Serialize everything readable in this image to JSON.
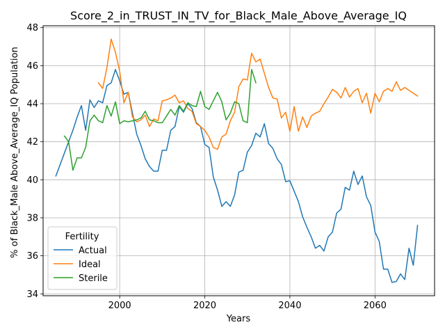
{
  "chart_data": {
    "type": "line",
    "title": "Score_2_in_TRUST_IN_TV_for_Black_Male_Above_Average_IQ",
    "xlabel": "Years",
    "ylabel": "% of Black_Male Above_Average_IQ Population",
    "xlim": [
      1982,
      2074
    ],
    "ylim": [
      33.9,
      48.1
    ],
    "xticks": [
      2000,
      2020,
      2040,
      2060
    ],
    "yticks": [
      34,
      36,
      38,
      40,
      42,
      44,
      46,
      48
    ],
    "grid": true,
    "legend": {
      "title": "Fertility",
      "placement": "lower-left"
    },
    "series": [
      {
        "name": "Actual",
        "color": "#1f77b4",
        "x": [
          1985,
          1986,
          1987,
          1988,
          1989,
          1990,
          1991,
          1992,
          1993,
          1994,
          1995,
          1996,
          1997,
          1998,
          1999,
          2000,
          2001,
          2002,
          2003,
          2004,
          2005,
          2006,
          2007,
          2008,
          2009,
          2010,
          2011,
          2012,
          2013,
          2014,
          2015,
          2016,
          2017,
          2018,
          2019,
          2020,
          2021,
          2022,
          2023,
          2024,
          2025,
          2026,
          2027,
          2028,
          2029,
          2030,
          2031,
          2032,
          2033,
          2034,
          2035,
          2036,
          2037,
          2038,
          2039,
          2040,
          2041,
          2042,
          2043,
          2044,
          2045,
          2046,
          2047,
          2048,
          2049,
          2050,
          2051,
          2052,
          2053,
          2054,
          2055,
          2056,
          2057,
          2058,
          2059,
          2060,
          2061,
          2062,
          2063,
          2064,
          2065,
          2066,
          2067,
          2068,
          2069,
          2070
        ],
        "values": [
          40.2,
          40.8,
          41.4,
          42.0,
          42.6,
          43.3,
          43.9,
          42.6,
          44.2,
          43.8,
          44.15,
          44.05,
          44.95,
          45.1,
          45.8,
          45.2,
          44.5,
          44.6,
          43.5,
          42.4,
          41.8,
          41.1,
          40.7,
          40.45,
          40.45,
          41.55,
          41.55,
          42.6,
          42.8,
          43.85,
          43.55,
          44.0,
          43.75,
          43.0,
          42.8,
          41.85,
          41.7,
          40.15,
          39.45,
          38.6,
          38.85,
          38.6,
          39.2,
          40.4,
          40.5,
          41.45,
          41.8,
          42.45,
          42.25,
          42.95,
          41.9,
          41.65,
          41.1,
          40.8,
          39.9,
          39.95,
          39.4,
          38.85,
          38.05,
          37.5,
          37.0,
          36.4,
          36.55,
          36.25,
          37.0,
          37.25,
          38.25,
          38.45,
          39.6,
          39.45,
          40.45,
          39.75,
          40.2,
          39.1,
          38.65,
          37.25,
          36.75,
          35.3,
          35.3,
          34.6,
          34.65,
          35.05,
          34.75,
          36.4,
          35.5,
          37.6
        ]
      },
      {
        "name": "Ideal",
        "color": "#ff7f0e",
        "x": [
          1995,
          1996,
          1997,
          1998,
          1999,
          2000,
          2001,
          2002,
          2003,
          2004,
          2005,
          2006,
          2007,
          2008,
          2009,
          2010,
          2011,
          2012,
          2013,
          2014,
          2015,
          2016,
          2017,
          2018,
          2019,
          2020,
          2021,
          2022,
          2023,
          2024,
          2025,
          2026,
          2027,
          2028,
          2029,
          2030,
          2031,
          2032,
          2033,
          2034,
          2035,
          2036,
          2037,
          2038,
          2039,
          2040,
          2041,
          2042,
          2043,
          2044,
          2045,
          2046,
          2047,
          2048,
          2049,
          2050,
          2051,
          2052,
          2053,
          2054,
          2055,
          2056,
          2057,
          2058,
          2059,
          2060,
          2061,
          2062,
          2063,
          2064,
          2065,
          2066,
          2067,
          2068,
          2069,
          2070
        ],
        "values": [
          45.1,
          44.8,
          45.9,
          47.4,
          46.7,
          45.7,
          44.05,
          44.6,
          43.3,
          43.05,
          43.15,
          43.4,
          42.8,
          43.2,
          43.1,
          44.15,
          44.2,
          44.3,
          44.45,
          44.05,
          44.15,
          43.75,
          43.6,
          42.95,
          42.8,
          42.6,
          42.25,
          41.7,
          41.6,
          42.25,
          42.4,
          43.1,
          43.55,
          44.9,
          45.3,
          45.25,
          46.65,
          46.2,
          46.35,
          45.6,
          44.85,
          44.3,
          44.25,
          43.25,
          43.55,
          42.55,
          43.85,
          42.55,
          43.3,
          42.75,
          43.35,
          43.5,
          43.6,
          44.0,
          44.35,
          44.75,
          44.6,
          44.3,
          44.85,
          44.35,
          44.65,
          44.8,
          44.05,
          44.55,
          43.5,
          44.55,
          44.1,
          44.65,
          44.8,
          44.65,
          45.15,
          44.7,
          44.85,
          44.7,
          44.55,
          44.4
        ]
      },
      {
        "name": "Sterile",
        "color": "#2ca02c",
        "x": [
          1987,
          1988,
          1989,
          1990,
          1991,
          1992,
          1993,
          1994,
          1995,
          1996,
          1997,
          1998,
          1999,
          2000,
          2001,
          2002,
          2003,
          2004,
          2005,
          2006,
          2007,
          2008,
          2009,
          2010,
          2011,
          2012,
          2013,
          2014,
          2015,
          2016,
          2017,
          2018,
          2019,
          2020,
          2021,
          2022,
          2023,
          2024,
          2025,
          2026,
          2027,
          2028,
          2029,
          2030,
          2031,
          2032
        ],
        "values": [
          42.3,
          42.0,
          40.5,
          41.15,
          41.15,
          41.7,
          43.1,
          43.4,
          43.1,
          43.0,
          43.9,
          43.35,
          44.1,
          42.95,
          43.1,
          43.05,
          43.1,
          43.15,
          43.25,
          43.6,
          43.15,
          43.1,
          43.0,
          43.0,
          43.35,
          43.7,
          43.4,
          43.9,
          43.6,
          44.05,
          43.9,
          43.85,
          44.65,
          43.85,
          43.7,
          44.15,
          44.6,
          44.1,
          43.15,
          43.5,
          44.1,
          44.0,
          43.1,
          43.0,
          45.8,
          45.1
        ]
      }
    ]
  }
}
